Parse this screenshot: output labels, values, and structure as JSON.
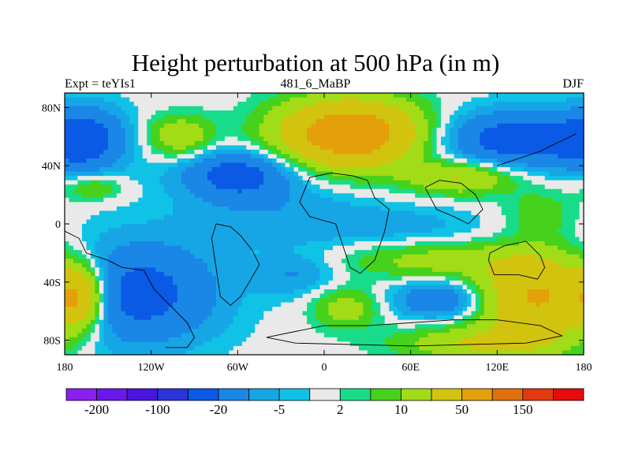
{
  "chart_data": {
    "type": "heatmap",
    "title": "Height perturbation at 500 hPa (in m)",
    "left_string": "Expt = teYIs1",
    "center_string": "481_6_MaBP",
    "right_string": "DJF",
    "xlim": [
      -180,
      180
    ],
    "ylim": [
      -90,
      90
    ],
    "x_ticks": [
      {
        "value": -180,
        "label": "180"
      },
      {
        "value": -120,
        "label": "120W"
      },
      {
        "value": -60,
        "label": "60W"
      },
      {
        "value": 0,
        "label": "0"
      },
      {
        "value": 60,
        "label": "60E"
      },
      {
        "value": 120,
        "label": "120E"
      },
      {
        "value": 180,
        "label": "180"
      }
    ],
    "y_ticks": [
      {
        "value": 80,
        "label": "80N"
      },
      {
        "value": 40,
        "label": "40N"
      },
      {
        "value": 0,
        "label": "0"
      },
      {
        "value": -40,
        "label": "40S"
      },
      {
        "value": -80,
        "label": "80S"
      }
    ],
    "colorbar": {
      "colors": [
        "#8a1ff0",
        "#6a18ea",
        "#4a14e0",
        "#2a34d8",
        "#0a5ae6",
        "#1a86e6",
        "#16a6e6",
        "#10c2e6",
        "#e9e9e9",
        "#18dc8a",
        "#46d21c",
        "#a2dc16",
        "#d2c40e",
        "#e4a00a",
        "#e2700a",
        "#e23a0e",
        "#e40c0c"
      ],
      "labels": [
        {
          "boundary": 1,
          "text": "-200"
        },
        {
          "boundary": 3,
          "text": "-100"
        },
        {
          "boundary": 5,
          "text": "-20"
        },
        {
          "boundary": 7,
          "text": "-5"
        },
        {
          "boundary": 9,
          "text": "2"
        },
        {
          "boundary": 11,
          "text": "10"
        },
        {
          "boundary": 13,
          "text": "50"
        },
        {
          "boundary": 15,
          "text": "150"
        }
      ]
    },
    "anomaly_centers": [
      {
        "lon": -165,
        "lat": 58,
        "amp": -22,
        "sx": 20,
        "sy": 16
      },
      {
        "lon": -100,
        "lat": 60,
        "amp": 18,
        "sx": 16,
        "sy": 10
      },
      {
        "lon": -60,
        "lat": 34,
        "amp": -26,
        "sx": 28,
        "sy": 12
      },
      {
        "lon": 18,
        "lat": 62,
        "amp": 60,
        "sx": 34,
        "sy": 16
      },
      {
        "lon": 135,
        "lat": 58,
        "amp": -28,
        "sx": 40,
        "sy": 14
      },
      {
        "lon": 95,
        "lat": 32,
        "amp": 22,
        "sx": 26,
        "sy": 8
      },
      {
        "lon": -160,
        "lat": 25,
        "amp": 12,
        "sx": 14,
        "sy": 6
      },
      {
        "lon": -30,
        "lat": 5,
        "amp": -8,
        "sx": 50,
        "sy": 16
      },
      {
        "lon": 60,
        "lat": -2,
        "amp": -6,
        "sx": 44,
        "sy": 10
      },
      {
        "lon": 150,
        "lat": 8,
        "amp": 8,
        "sx": 18,
        "sy": 12
      },
      {
        "lon": 80,
        "lat": -25,
        "amp": 14,
        "sx": 45,
        "sy": 9
      },
      {
        "lon": -130,
        "lat": -48,
        "amp": -26,
        "sx": 40,
        "sy": 25
      },
      {
        "lon": -170,
        "lat": -50,
        "amp": 40,
        "sx": 12,
        "sy": 15
      },
      {
        "lon": -20,
        "lat": -35,
        "amp": -10,
        "sx": 20,
        "sy": 10
      },
      {
        "lon": 15,
        "lat": -58,
        "amp": 14,
        "sx": 16,
        "sy": 10
      },
      {
        "lon": 80,
        "lat": -52,
        "amp": -20,
        "sx": 22,
        "sy": 9
      },
      {
        "lon": 150,
        "lat": -50,
        "amp": 45,
        "sx": 28,
        "sy": 20
      },
      {
        "lon": 110,
        "lat": -82,
        "amp": 20,
        "sx": 40,
        "sy": 8
      }
    ]
  }
}
